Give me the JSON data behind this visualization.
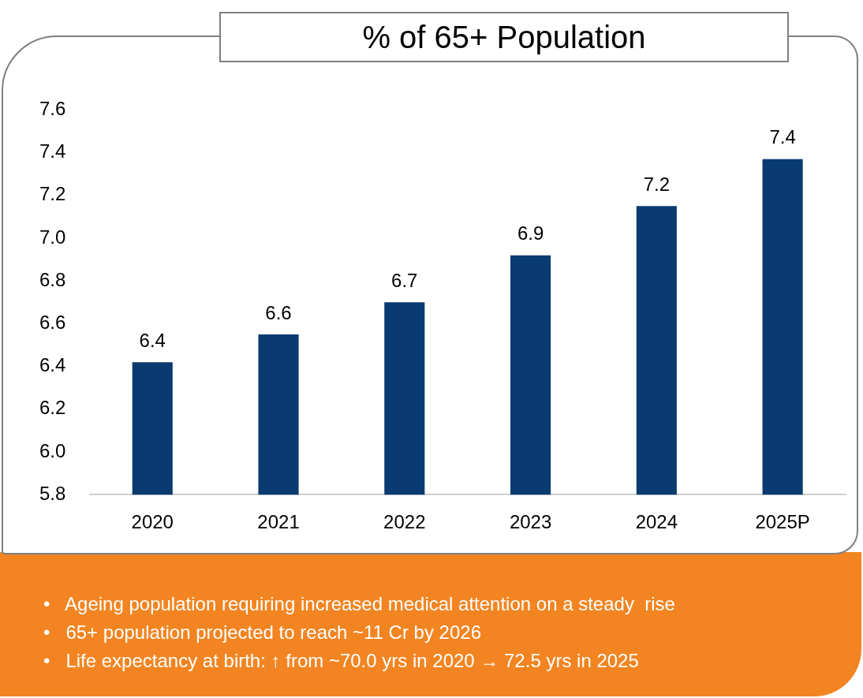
{
  "chart_data": {
    "type": "bar",
    "title": "% of 65+ Population",
    "categories": [
      "2020",
      "2021",
      "2022",
      "2023",
      "2024",
      "2025P"
    ],
    "values": [
      6.42,
      6.55,
      6.7,
      6.92,
      7.15,
      7.37
    ],
    "value_labels": [
      "6.4",
      "6.6",
      "6.7",
      "6.9",
      "7.2",
      "7.4"
    ],
    "color": "#0a3b70",
    "ylim": [
      5.8,
      7.6
    ],
    "yticks": [
      5.8,
      {
        "value": 6,
        "label": "6.0"
      },
      6.2,
      6.4,
      6.6,
      6.8,
      {
        "value": 7,
        "label": "7.0"
      },
      7.2,
      7.4,
      7.6
    ],
    "grid": false,
    "legend": false,
    "annotations": [
      "•   Ageing population requiring increased medical attention on a steady  rise",
      "•   65+ population projected to reach ~11 Cr by 2026",
      "•   Life expectancy at birth: ↑ from ~70.0 yrs in 2020 → 72.5 yrs in 2025"
    ]
  }
}
